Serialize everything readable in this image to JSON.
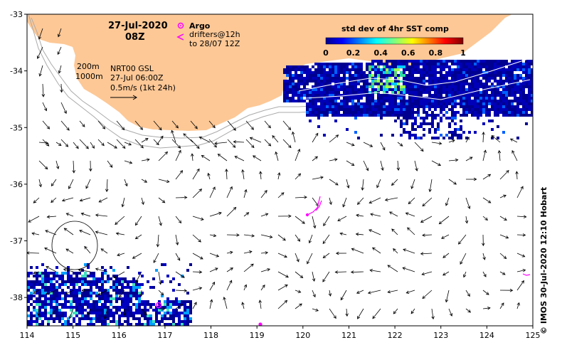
{
  "map": {
    "date": "27-Jul-2020",
    "time": "08Z",
    "argo_label": "Argo",
    "drifters_label_1": "drifters@12h",
    "drifters_label_2": "to 28/07 12Z",
    "depth_200": "200m",
    "depth_1000": "1000m",
    "model_line_1": "NRT00 GSL",
    "model_line_2": "27-Jul 06:00Z",
    "scale_line": "0.5m/s (1kt 24h)",
    "colorbar_title": "std dev of 4hr SST comp",
    "colorbar_ticks": [
      "0",
      "0.2",
      "0.4",
      "0.6",
      "0.8",
      "1"
    ],
    "colorbar_range": [
      0,
      1
    ],
    "credit": "© IMOS 30-Jul-2020 12:10 Hobart"
  },
  "axes": {
    "x_ticks": [
      "114",
      "115",
      "116",
      "117",
      "118",
      "119",
      "120",
      "121",
      "122",
      "123",
      "124",
      "125"
    ],
    "y_ticks": [
      "-33",
      "-34",
      "-35",
      "-36",
      "-37",
      "-38"
    ],
    "lon_range": [
      114,
      125
    ],
    "lat_range": [
      -38.5,
      -33
    ]
  },
  "colors": {
    "land": "#fdc896",
    "argo": "#ff00ff",
    "sst_low": "#000090",
    "sst_mid": "#00c0ff",
    "sst_high": "#ffff00",
    "sst_max": "#a00000"
  }
}
